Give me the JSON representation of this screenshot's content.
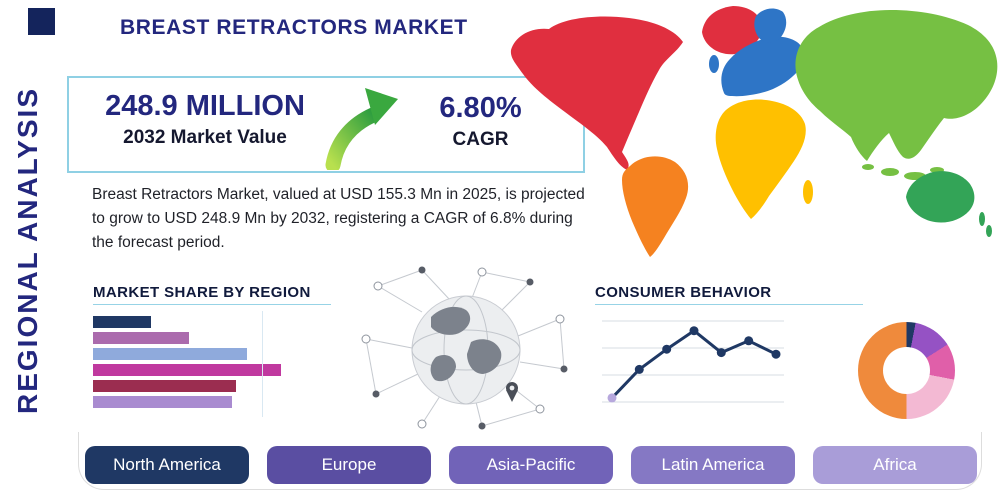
{
  "page": {
    "title": "BREAST RETRACTORS MARKET",
    "vertical_label": "REGIONAL ANALYSIS"
  },
  "stats": {
    "value_2032": "248.9 MILLION",
    "value_2032_label": "2032 Market Value",
    "cagr": "6.80%",
    "cagr_label": "CAGR",
    "description": "Breast Retractors Market, valued at USD 155.3 Mn in 2025, is projected to grow to USD 248.9 Mn by 2032, registering a CAGR of 6.8% during the forecast period."
  },
  "sections": {
    "market_share_title": "MARKET SHARE BY REGION",
    "consumer_behavior_title": "CONSUMER BEHAVIOR"
  },
  "chart_data": [
    {
      "type": "bar",
      "orientation": "horizontal",
      "title": "MARKET SHARE BY REGION",
      "values": [
        31,
        51,
        82,
        100,
        76,
        74
      ],
      "colors": [
        "#1f3864",
        "#ab6bad",
        "#8faadc",
        "#c0399f",
        "#9b2d50",
        "#a98bd0"
      ],
      "xlim": [
        0,
        100
      ],
      "grid": false
    },
    {
      "type": "line",
      "title": "CONSUMER BEHAVIOR",
      "values": [
        12,
        46,
        70,
        92,
        66,
        80,
        64
      ],
      "ylim": [
        0,
        100
      ],
      "line_color": "#1f3864",
      "marker_color": "#1f3864",
      "first_marker_color": "#b7a8dd",
      "grid": true
    },
    {
      "type": "pie",
      "title": "Regional share donut",
      "donut_hole": true,
      "slices": [
        {
          "value": 3,
          "color": "#1f3864"
        },
        {
          "value": 13,
          "color": "#9552c4"
        },
        {
          "value": 12,
          "color": "#e05fa9"
        },
        {
          "value": 22,
          "color": "#f3b9d3"
        },
        {
          "value": 50,
          "color": "#ef8a3c"
        }
      ]
    }
  ],
  "map": {
    "regions": [
      {
        "name": "North America",
        "color": "#e02f3f"
      },
      {
        "name": "Greenland",
        "color": "#e02f3f"
      },
      {
        "name": "South America",
        "color": "#f58220"
      },
      {
        "name": "Europe",
        "color": "#2e75c6"
      },
      {
        "name": "Africa",
        "color": "#ffc000"
      },
      {
        "name": "Asia",
        "color": "#76c043"
      },
      {
        "name": "Australia",
        "color": "#33a457"
      }
    ]
  },
  "region_buttons": [
    {
      "label": "North America",
      "color": "#1f3864"
    },
    {
      "label": "Europe",
      "color": "#5a4ea2"
    },
    {
      "label": "Asia-Pacific",
      "color": "#7163b8"
    },
    {
      "label": "Latin America",
      "color": "#8578c4"
    },
    {
      "label": "Africa",
      "color": "#a99dd8"
    }
  ],
  "theme": {
    "title_color": "#23277e",
    "accent_line_color": "#97d3e6",
    "arrow_green_light": "#b8e04e",
    "arrow_green_dark": "#2f9e3f"
  }
}
